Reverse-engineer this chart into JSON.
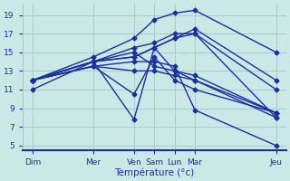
{
  "xlabel": "Température (°c)",
  "background_color": "#cce8e6",
  "line_color": "#1a2fa0",
  "grid_color": "#a0c8c8",
  "tick_labels": [
    "Dim",
    "Mer",
    "Ven",
    "Sam",
    "Lun",
    "Mar",
    "Jeu"
  ],
  "tick_positions": [
    0,
    3,
    5,
    6,
    7,
    8,
    12
  ],
  "xlim": [
    -0.5,
    12.5
  ],
  "ylim": [
    4.5,
    20.2
  ],
  "yticks": [
    5,
    7,
    9,
    11,
    13,
    15,
    17,
    19
  ],
  "lines": [
    {
      "x": [
        0,
        3,
        5,
        6,
        7,
        8,
        12
      ],
      "y": [
        12.0,
        14.0,
        14.5,
        15.5,
        16.5,
        17.0,
        8.0
      ]
    },
    {
      "x": [
        0,
        3,
        5,
        6,
        7,
        8,
        12
      ],
      "y": [
        11.0,
        14.0,
        7.8,
        15.5,
        13.0,
        12.0,
        8.0
      ]
    },
    {
      "x": [
        0,
        3,
        5,
        6,
        7,
        8,
        12
      ],
      "y": [
        12.0,
        13.5,
        10.5,
        14.5,
        12.0,
        11.0,
        8.5
      ]
    },
    {
      "x": [
        0,
        3,
        5,
        6,
        7,
        8,
        12
      ],
      "y": [
        12.0,
        14.0,
        15.5,
        16.0,
        17.0,
        17.0,
        11.0
      ]
    },
    {
      "x": [
        0,
        3,
        5,
        6,
        7,
        8,
        12
      ],
      "y": [
        12.0,
        14.5,
        16.5,
        18.5,
        19.2,
        19.5,
        15.0
      ]
    },
    {
      "x": [
        0,
        3,
        5,
        6,
        7,
        8,
        12
      ],
      "y": [
        12.0,
        14.0,
        15.0,
        13.5,
        13.0,
        12.5,
        8.5
      ]
    },
    {
      "x": [
        0,
        3,
        5,
        6,
        7,
        8,
        12
      ],
      "y": [
        12.0,
        14.0,
        14.5,
        15.5,
        16.5,
        17.5,
        12.0
      ]
    },
    {
      "x": [
        0,
        3,
        5,
        6,
        7,
        8,
        12
      ],
      "y": [
        12.0,
        13.5,
        13.0,
        13.0,
        12.5,
        12.0,
        8.5
      ]
    },
    {
      "x": [
        0,
        3,
        5,
        6,
        7,
        8,
        12
      ],
      "y": [
        12.0,
        13.5,
        14.0,
        14.0,
        13.5,
        8.8,
        5.0
      ]
    }
  ],
  "marker": "D",
  "markersize": 2.5,
  "linewidth": 1.0
}
